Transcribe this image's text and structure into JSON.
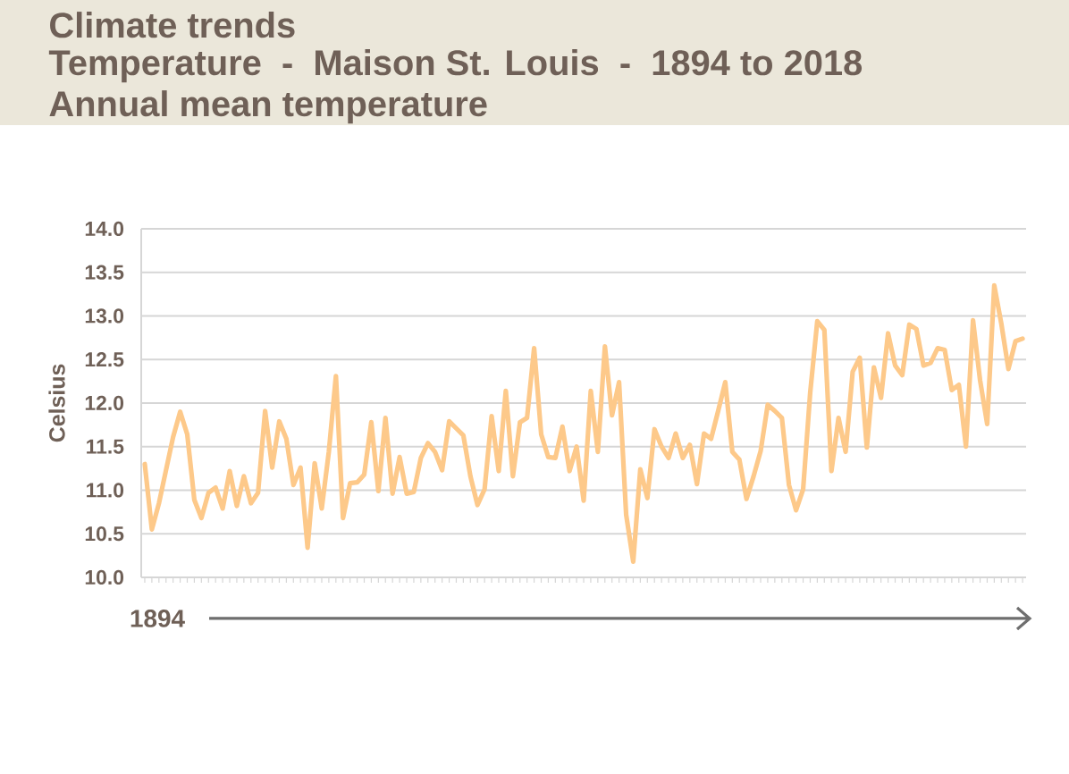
{
  "chart_data": {
    "type": "line",
    "title": "Climate trends",
    "subtitle": "Temperature  -  Maison St. Louis  -  1894 to 2018",
    "annotations": [
      "Annual mean temperature",
      "1894"
    ],
    "ylabel": "Celsius",
    "categories": [
      null,
      null,
      null,
      null,
      null,
      null,
      null,
      null,
      null,
      null,
      null,
      null,
      null,
      null,
      null,
      null,
      null,
      null,
      null,
      null,
      null,
      null,
      null,
      null,
      null,
      null,
      null,
      null,
      null,
      null,
      null,
      null,
      null,
      null,
      null,
      null,
      null,
      null,
      null,
      null,
      null,
      null,
      null,
      null,
      null,
      null,
      null,
      null,
      null,
      null,
      null,
      null,
      null,
      null,
      null,
      null,
      null,
      null,
      null,
      null,
      null,
      null,
      null,
      null,
      null,
      null,
      null,
      null,
      null,
      null,
      null,
      null,
      null,
      null,
      null,
      null,
      null,
      null,
      null,
      null,
      null,
      null,
      null,
      null,
      null,
      null,
      null,
      null,
      null,
      null,
      null,
      null,
      null,
      null,
      null,
      null,
      null,
      null,
      null,
      null,
      null,
      null,
      null,
      null,
      null,
      null,
      null,
      null,
      null,
      null,
      null,
      null,
      null,
      null,
      null,
      null,
      null,
      null,
      null,
      null,
      null,
      null,
      null,
      null,
      null
    ],
    "values": [
      11.3,
      10.55,
      10.85,
      11.23,
      11.61,
      11.9,
      11.64,
      10.89,
      10.68,
      10.97,
      11.03,
      10.79,
      11.22,
      10.82,
      11.16,
      10.85,
      10.97,
      11.91,
      11.26,
      11.79,
      11.59,
      11.06,
      11.26,
      10.34,
      11.31,
      10.79,
      11.44,
      12.31,
      10.68,
      11.08,
      11.09,
      11.18,
      11.78,
      10.99,
      11.83,
      10.96,
      11.38,
      10.96,
      10.98,
      11.37,
      11.54,
      11.44,
      11.23,
      11.79,
      11.71,
      11.63,
      11.16,
      10.83,
      11.01,
      11.85,
      11.22,
      12.14,
      11.16,
      11.78,
      11.83,
      12.63,
      11.64,
      11.38,
      11.37,
      11.73,
      11.22,
      11.5,
      10.88,
      12.14,
      11.44,
      12.65,
      11.86,
      12.24,
      10.72,
      10.18,
      11.24,
      10.91,
      11.7,
      11.5,
      11.37,
      11.65,
      11.37,
      11.52,
      11.07,
      11.65,
      11.59,
      11.91,
      12.24,
      11.44,
      11.35,
      10.9,
      11.16,
      11.45,
      11.98,
      11.91,
      11.83,
      11.06,
      10.77,
      11.01,
      12.12,
      12.94,
      12.84,
      11.22,
      11.83,
      11.44,
      12.36,
      12.52,
      11.49,
      12.41,
      12.06,
      12.8,
      12.43,
      12.32,
      12.9,
      12.85,
      12.43,
      12.46,
      12.63,
      12.61,
      12.15,
      12.21,
      11.5,
      12.95,
      12.26,
      11.76,
      13.35,
      12.91,
      12.39,
      12.71,
      12.74
    ],
    "color": "#fdc98a",
    "ylim": [
      10,
      14
    ],
    "yticks": [
      {
        "value": 10,
        "label": "10.0"
      },
      10.5,
      {
        "value": 11,
        "label": "11.0"
      },
      11.5,
      {
        "value": 12,
        "label": "12.0"
      },
      12.5,
      {
        "value": 13,
        "label": "13.0"
      },
      13.5,
      {
        "value": 14,
        "label": "14.0"
      }
    ],
    "grid": "y"
  }
}
